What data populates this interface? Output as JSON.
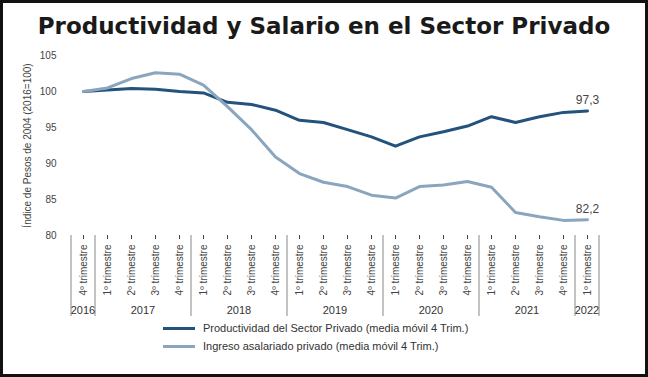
{
  "chart_data": {
    "type": "line",
    "title": "Productividad y Salario en el Sector Privado",
    "y_label": "Índice de Pesos de 2004 (2016=100)",
    "categories": [
      "4º trimestre",
      "1º trimestre",
      "2º trimestre",
      "3º trimestre",
      "4º trimestre",
      "1º trimestre",
      "2º trimestre",
      "3º trimestre",
      "4º trimestre",
      "1º trimestre",
      "2º trimestre",
      "3º trimestre",
      "4º trimestre",
      "1º trimestre",
      "2º trimestre",
      "3º trimestre",
      "4º trimestre",
      "1º trimestre",
      "2º trimestre",
      "3º trimestre",
      "4º trimestre",
      "1º trimestre"
    ],
    "years": [
      "2016",
      "2017",
      "2017",
      "2017",
      "2017",
      "2018",
      "2018",
      "2018",
      "2018",
      "2019",
      "2019",
      "2019",
      "2019",
      "2020",
      "2020",
      "2020",
      "2020",
      "2021",
      "2021",
      "2021",
      "2021",
      "2022"
    ],
    "series": [
      {
        "name": "Productividad del Sector Privado (media móvil 4 Trim.)",
        "color": "#23527c",
        "values": [
          100,
          100.2,
          100.4,
          100.3,
          100,
          99.8,
          98.5,
          98.2,
          97.4,
          96,
          95.7,
          94.7,
          93.7,
          92.4,
          93.7,
          94.4,
          95.2,
          96.5,
          95.7,
          96.5,
          97.1,
          97.3
        ]
      },
      {
        "name": "Ingreso asalariado privado (media móvil 4 Trim.)",
        "color": "#8aa5be",
        "values": [
          100,
          100.5,
          101.8,
          102.6,
          102.4,
          100.9,
          97.9,
          94.7,
          90.9,
          88.6,
          87.4,
          86.8,
          85.6,
          85.2,
          86.8,
          87.0,
          87.5,
          86.7,
          83.2,
          82.6,
          82.1,
          82.2
        ]
      }
    ],
    "annotations": [
      {
        "text": "97,3",
        "series": "Productividad del Sector Privado (media móvil 4 Trim.)"
      },
      {
        "text": "82,2",
        "series": "Ingreso asalariado privado (media móvil 4 Trim.)"
      }
    ],
    "ylim": [
      80,
      105
    ],
    "yticks": [
      80,
      85,
      90,
      95,
      100,
      105
    ],
    "grid": false,
    "legend": "bottom"
  }
}
